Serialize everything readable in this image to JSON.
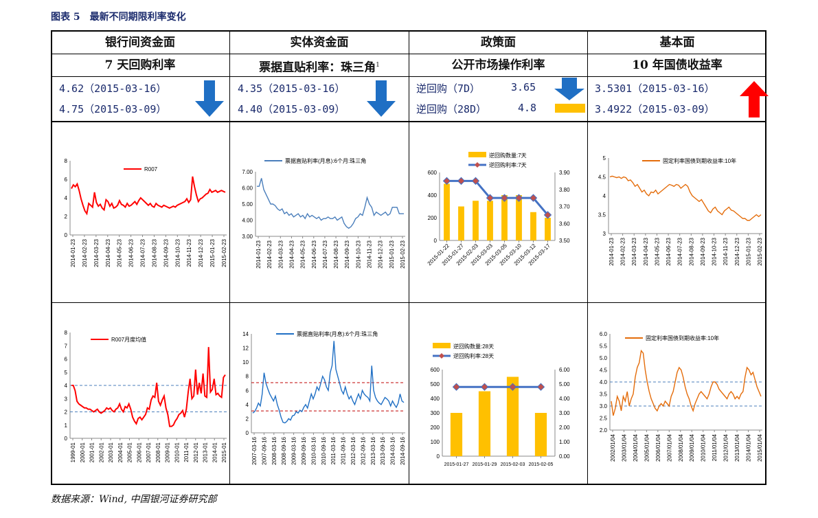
{
  "figure_title": "图表 5　最新不同期限利率变化",
  "source_note": "数据来源：Wind, 中国银河证券研究部",
  "columns": [
    {
      "heading": "银行间资金面",
      "subheading": "7 天回购利率"
    },
    {
      "heading": "实体资金面",
      "subheading": "票据直贴利率：珠三角",
      "subheading_sup": "1"
    },
    {
      "heading": "政策面",
      "subheading": "公开市场操作利率"
    },
    {
      "heading": "基本面",
      "subheading": "10 年国债收益率"
    }
  ],
  "values": {
    "col1": [
      "4.62（2015-03-16）",
      "4.75（2015-03-09）"
    ],
    "col2": [
      "4.35（2015-03-16）",
      "4.40（2015-03-09）"
    ],
    "col3": [
      {
        "label": "逆回购（7D）",
        "value": "3.65"
      },
      {
        "label": "逆回购（28D）",
        "value": "4.8"
      }
    ],
    "col4": [
      "3.5301（2015-03-16）",
      "3.4922（2015-03-09）"
    ]
  },
  "indicators": {
    "col1": {
      "type": "down-arrow",
      "color": "#1f6fc4"
    },
    "col2": {
      "type": "down-arrow",
      "color": "#1f6fc4"
    },
    "col3a": {
      "type": "down-arrow",
      "color": "#1f6fc4"
    },
    "col3b": {
      "type": "flat-bar",
      "color": "#ffc000"
    },
    "col4": {
      "type": "up-arrow",
      "color": "#ff0000"
    }
  },
  "chart_data": [
    {
      "id": "c1",
      "type": "line",
      "legend": [
        "R007"
      ],
      "legend_position": "top",
      "ylim": [
        0,
        8
      ],
      "yticks": [
        0,
        2,
        4,
        6,
        8
      ],
      "xtick_labels": [
        "2014-01-23",
        "2014-02-23",
        "2014-03-23",
        "2014-04-23",
        "2014-05-23",
        "2014-06-23",
        "2014-07-23",
        "2014-08-23",
        "2014-09-23",
        "2014-10-23",
        "2014-11-23",
        "2014-12-23",
        "2015-01-23",
        "2015-02-23"
      ],
      "series": [
        {
          "name": "R007",
          "color": "#ff0000",
          "values": [
            5.0,
            5.4,
            5.2,
            5.5,
            4.8,
            3.9,
            3.2,
            2.6,
            2.3,
            3.4,
            3.2,
            3.0,
            4.6,
            3.5,
            3.1,
            3.3,
            2.9,
            2.7,
            3.8,
            3.6,
            3.1,
            3.4,
            2.9,
            3.0,
            3.2,
            3.7,
            3.3,
            3.2,
            3.0,
            3.4,
            3.1,
            3.2,
            3.4,
            3.6,
            3.3,
            3.7,
            4.0,
            3.8,
            3.6,
            3.4,
            3.2,
            3.4,
            3.1,
            3.0,
            3.4,
            3.2,
            3.1,
            3.0,
            3.2,
            3.1,
            3.0,
            2.9,
            3.0,
            3.1,
            3.0,
            3.2,
            3.3,
            3.4,
            3.5,
            3.6,
            3.9,
            3.5,
            3.8,
            6.3,
            5.2,
            4.3,
            3.6,
            3.9,
            4.0,
            4.2,
            4.4,
            4.5,
            4.9,
            4.6,
            4.7,
            4.8,
            4.6,
            4.7,
            4.8,
            4.7,
            4.6
          ]
        }
      ]
    },
    {
      "id": "c2",
      "type": "line",
      "legend": [
        "票据直贴利率(月息):6个月:珠三角"
      ],
      "legend_position": "top",
      "ylim": [
        3,
        7
      ],
      "yticks": [
        3,
        4,
        5,
        6,
        7
      ],
      "ytick_labels": [
        "3.00",
        "4.00",
        "5.00",
        "6.00",
        "7.00"
      ],
      "xtick_labels": [
        "2014-01-23",
        "2014-02-23",
        "2014-03-23",
        "2014-04-23",
        "2014-05-23",
        "2014-06-23",
        "2014-07-23",
        "2014-08-23",
        "2014-09-23",
        "2014-10-23",
        "2014-11-23",
        "2014-12-23",
        "2015-01-23",
        "2015-02-23"
      ],
      "series": [
        {
          "name": "票据直贴利率(月息):6个月:珠三角",
          "color": "#4a7ebb",
          "values": [
            6.1,
            6.1,
            6.6,
            5.9,
            5.6,
            5.3,
            5.0,
            5.0,
            4.9,
            4.7,
            4.6,
            4.7,
            4.4,
            4.5,
            4.3,
            4.4,
            4.2,
            4.3,
            4.4,
            4.2,
            4.3,
            4.1,
            4.4,
            4.2,
            4.3,
            4.2,
            4.1,
            4.2,
            4.0,
            4.1,
            4.1,
            4.2,
            4.1,
            4.1,
            4.2,
            4.0,
            4.1,
            4.2,
            3.8,
            3.6,
            3.5,
            3.6,
            3.8,
            4.1,
            4.2,
            4.4,
            4.3,
            4.8,
            5.4,
            5.0,
            4.8,
            4.3,
            4.5,
            4.4,
            4.3,
            4.4,
            4.5,
            4.3,
            4.4,
            4.8,
            4.8,
            4.8,
            4.4,
            4.4,
            4.4
          ]
        }
      ]
    },
    {
      "id": "c3",
      "type": "bar+line",
      "legend": [
        "逆回购数量:7天",
        "逆回购利率:7天"
      ],
      "legend_position": "top",
      "categories": [
        "2015-01-22",
        "2015-01-27",
        "2015-02-03",
        "2015-03-03",
        "2015-03-05",
        "2015-03-10",
        "2015-03-12",
        "2015-03-17"
      ],
      "ylim": [
        0,
        600
      ],
      "yticks": [
        0,
        200,
        400,
        600
      ],
      "y2lim": [
        3.5,
        3.9
      ],
      "y2ticks": [
        3.5,
        3.6,
        3.7,
        3.8,
        3.9
      ],
      "y2tick_labels": [
        "3.50",
        "3.60",
        "3.70",
        "3.80",
        "3.90"
      ],
      "series": [
        {
          "name": "逆回购数量:7天",
          "kind": "bar",
          "color": "#ffc000",
          "values": [
            500,
            300,
            350,
            350,
            400,
            400,
            250,
            200
          ]
        },
        {
          "name": "逆回购利率:7天",
          "kind": "line",
          "axis": "right",
          "color": "#4472c4",
          "marker_color": "#c0504d",
          "values": [
            3.85,
            3.85,
            3.85,
            3.75,
            3.75,
            3.75,
            3.75,
            3.65
          ]
        }
      ]
    },
    {
      "id": "c4",
      "type": "line",
      "legend": [
        "固定利率国债到期收益率:10年"
      ],
      "legend_position": "top",
      "ylim": [
        3,
        5
      ],
      "yticks": [
        3,
        3.5,
        4,
        4.5,
        5
      ],
      "ytick_labels": [
        "3",
        "3.5",
        "4",
        "4.5",
        "5"
      ],
      "xtick_labels": [
        "2014-01-23",
        "2014-02-23",
        "2014-03-23",
        "2014-04-23",
        "2014-05-23",
        "2014-06-23",
        "2014-07-23",
        "2014-08-23",
        "2014-09-23",
        "2014-10-23",
        "2014-11-23",
        "2014-12-23",
        "2015-01-23",
        "2015-02-23"
      ],
      "series": [
        {
          "name": "固定利率国债到期收益率:10年",
          "color": "#e46c0a",
          "values": [
            4.5,
            4.52,
            4.5,
            4.48,
            4.5,
            4.46,
            4.5,
            4.48,
            4.4,
            4.42,
            4.35,
            4.25,
            4.3,
            4.2,
            4.1,
            4.15,
            4.05,
            4.0,
            4.1,
            4.08,
            4.15,
            4.05,
            4.1,
            4.15,
            4.2,
            4.25,
            4.3,
            4.28,
            4.25,
            4.3,
            4.28,
            4.2,
            4.25,
            4.3,
            4.25,
            4.1,
            4.0,
            3.95,
            3.9,
            3.85,
            3.9,
            3.8,
            3.7,
            3.6,
            3.55,
            3.65,
            3.7,
            3.6,
            3.55,
            3.5,
            3.6,
            3.65,
            3.7,
            3.62,
            3.6,
            3.55,
            3.5,
            3.45,
            3.4,
            3.4,
            3.35,
            3.35,
            3.4,
            3.45,
            3.5,
            3.45,
            3.5
          ]
        }
      ]
    },
    {
      "id": "c5",
      "type": "line",
      "legend": [
        "R007月度均值"
      ],
      "legend_position": "top-left",
      "ylim": [
        0,
        8
      ],
      "yticks": [
        0,
        1,
        2,
        3,
        4,
        5,
        6,
        7,
        8
      ],
      "ref_lines": [
        {
          "value": 4,
          "color": "#4a7ebb",
          "style": "dashed"
        },
        {
          "value": 2,
          "color": "#4a7ebb",
          "style": "dashed"
        }
      ],
      "xtick_labels": [
        "1999-01",
        "2000-01",
        "2001-01",
        "2002-01",
        "2003-01",
        "2004-01",
        "2005-01",
        "2006-01",
        "2007-01",
        "2008-01",
        "2009-01",
        "2010-01",
        "2011-01",
        "2012-01",
        "2013-01",
        "2014-01",
        "2015-01"
      ],
      "series": [
        {
          "name": "R007月度均值",
          "color": "#ff0000",
          "values": [
            4.0,
            4.0,
            3.6,
            2.8,
            2.6,
            2.5,
            2.4,
            2.3,
            2.3,
            2.2,
            2.2,
            2.1,
            2.0,
            2.1,
            2.2,
            2.0,
            1.9,
            2.0,
            2.1,
            2.3,
            2.2,
            2.3,
            2.1,
            2.0,
            2.2,
            2.3,
            2.6,
            2.2,
            2.0,
            2.4,
            2.3,
            2.6,
            2.2,
            1.6,
            1.3,
            1.1,
            1.5,
            1.6,
            1.4,
            1.6,
            1.8,
            2.3,
            2.2,
            2.9,
            3.2,
            3.1,
            4.2,
            2.8,
            2.5,
            2.9,
            3.2,
            2.3,
            1.8,
            0.9,
            0.9,
            1.0,
            1.3,
            1.5,
            1.8,
            1.9,
            2.1,
            1.6,
            2.2,
            3.5,
            4.5,
            3.0,
            3.2,
            5.2,
            3.3,
            4.2,
            3.4,
            4.9,
            3.2,
            3.1,
            6.9,
            3.5,
            3.7,
            4.5,
            3.3,
            3.4,
            3.2,
            3.1,
            4.6,
            4.8
          ]
        }
      ]
    },
    {
      "id": "c6",
      "type": "line",
      "legend": [
        "票据直贴利率(月息):6个月:珠三角"
      ],
      "legend_position": "top",
      "ylim": [
        0,
        14
      ],
      "yticks": [
        0,
        2,
        4,
        6,
        8,
        10,
        12,
        14
      ],
      "ref_lines": [
        {
          "value": 7.1,
          "color": "#c00000",
          "style": "dashed"
        },
        {
          "value": 3.1,
          "color": "#c00000",
          "style": "dashed"
        }
      ],
      "xtick_labels": [
        "2007-03-16",
        "2007-09-16",
        "2008-03-16",
        "2008-09-16",
        "2009-03-16",
        "2009-09-16",
        "2010-03-16",
        "2010-09-16",
        "2011-03-16",
        "2011-09-16",
        "2012-03-16",
        "2012-09-16",
        "2013-03-16",
        "2013-09-16",
        "2014-03-16",
        "2014-09-16"
      ],
      "series": [
        {
          "name": "票据直贴利率(月息):6个月:珠三角",
          "color": "#1f6fc4",
          "values": [
            2.8,
            3.0,
            3.5,
            4.2,
            3.8,
            5.5,
            8.5,
            7.0,
            6.2,
            5.5,
            5.0,
            4.5,
            5.2,
            4.0,
            3.2,
            2.2,
            1.5,
            1.4,
            1.6,
            2.0,
            1.8,
            2.4,
            2.5,
            3.0,
            2.8,
            3.2,
            3.0,
            3.6,
            4.0,
            3.5,
            4.5,
            5.5,
            4.8,
            5.5,
            6.5,
            6.0,
            7.0,
            8.0,
            7.5,
            6.5,
            6.0,
            8.5,
            9.5,
            13.0,
            9.0,
            8.0,
            7.0,
            6.0,
            5.5,
            6.5,
            5.5,
            4.8,
            5.2,
            4.5,
            4.0,
            4.8,
            5.5,
            4.8,
            6.0,
            5.5,
            5.2,
            5.0,
            4.5,
            9.5,
            6.0,
            5.0,
            4.5,
            4.2,
            4.0,
            4.5,
            5.0,
            4.8,
            4.5,
            3.8,
            4.5,
            4.0,
            3.6,
            4.2,
            5.5,
            4.5,
            4.3
          ]
        }
      ]
    },
    {
      "id": "c7",
      "type": "bar+line",
      "legend": [
        "逆回购数量:28天",
        "逆回购利率:28天"
      ],
      "legend_position": "top",
      "categories": [
        "2015-01-27",
        "2015-01-29",
        "2015-02-03",
        "2015-02-05"
      ],
      "ylim": [
        0,
        600
      ],
      "yticks": [
        0,
        100,
        200,
        300,
        400,
        500,
        600
      ],
      "y2lim": [
        0,
        6
      ],
      "y2ticks": [
        0,
        1,
        2,
        3,
        4,
        5,
        6
      ],
      "y2tick_labels": [
        "0.00",
        "1.00",
        "2.00",
        "3.00",
        "4.00",
        "5.00",
        "6.00"
      ],
      "series": [
        {
          "name": "逆回购数量:28天",
          "kind": "bar",
          "color": "#ffc000",
          "values": [
            300,
            450,
            550,
            300
          ]
        },
        {
          "name": "逆回购利率:28天",
          "kind": "line",
          "axis": "right",
          "color": "#4472c4",
          "marker_color": "#c0504d",
          "values": [
            4.8,
            4.8,
            4.8,
            4.8
          ]
        }
      ]
    },
    {
      "id": "c8",
      "type": "line",
      "legend": [
        "固定利率国债到期收益率:10年"
      ],
      "legend_position": "top",
      "ylim": [
        2,
        6
      ],
      "yticks": [
        2,
        2.5,
        3,
        3.5,
        4,
        4.5,
        5,
        5.5,
        6
      ],
      "ytick_labels": [
        "2.0",
        "2.5",
        "3.0",
        "3.5",
        "4.0",
        "4.5",
        "5.0",
        "5.5",
        "6.0"
      ],
      "ref_lines": [
        {
          "value": 4.0,
          "color": "#4a7ebb",
          "style": "dashed"
        },
        {
          "value": 3.0,
          "color": "#4a7ebb",
          "style": "dashed"
        }
      ],
      "xtick_labels": [
        "2002/01/04",
        "2003/01/04",
        "2004/01/04",
        "2005/01/04",
        "2006/01/04",
        "2007/01/04",
        "2008/01/04",
        "2009/01/04",
        "2010/01/04",
        "2011/01/04",
        "2012/01/04",
        "2013/01/04",
        "2014/01/04",
        "2015/01/04"
      ],
      "series": [
        {
          "name": "固定利率国债到期收益率:10年",
          "color": "#e46c0a",
          "values": [
            3.2,
            2.6,
            2.9,
            3.4,
            3.2,
            2.8,
            3.4,
            3.2,
            3.6,
            3.0,
            3.3,
            3.5,
            4.2,
            4.6,
            4.8,
            5.3,
            5.2,
            4.5,
            4.0,
            3.6,
            3.3,
            3.1,
            2.9,
            2.8,
            3.0,
            3.1,
            3.0,
            3.2,
            3.1,
            3.0,
            3.4,
            3.6,
            4.0,
            4.4,
            4.6,
            4.5,
            4.2,
            3.8,
            3.5,
            3.3,
            3.0,
            2.8,
            3.1,
            3.3,
            3.5,
            3.6,
            3.5,
            3.4,
            3.3,
            3.5,
            3.8,
            4.0,
            4.0,
            3.9,
            3.7,
            3.6,
            3.5,
            3.4,
            3.3,
            3.5,
            3.6,
            3.5,
            3.3,
            3.4,
            3.3,
            3.5,
            3.6,
            4.2,
            4.6,
            4.5,
            4.3,
            4.4,
            4.1,
            3.8,
            3.6,
            3.4
          ]
        }
      ]
    }
  ]
}
